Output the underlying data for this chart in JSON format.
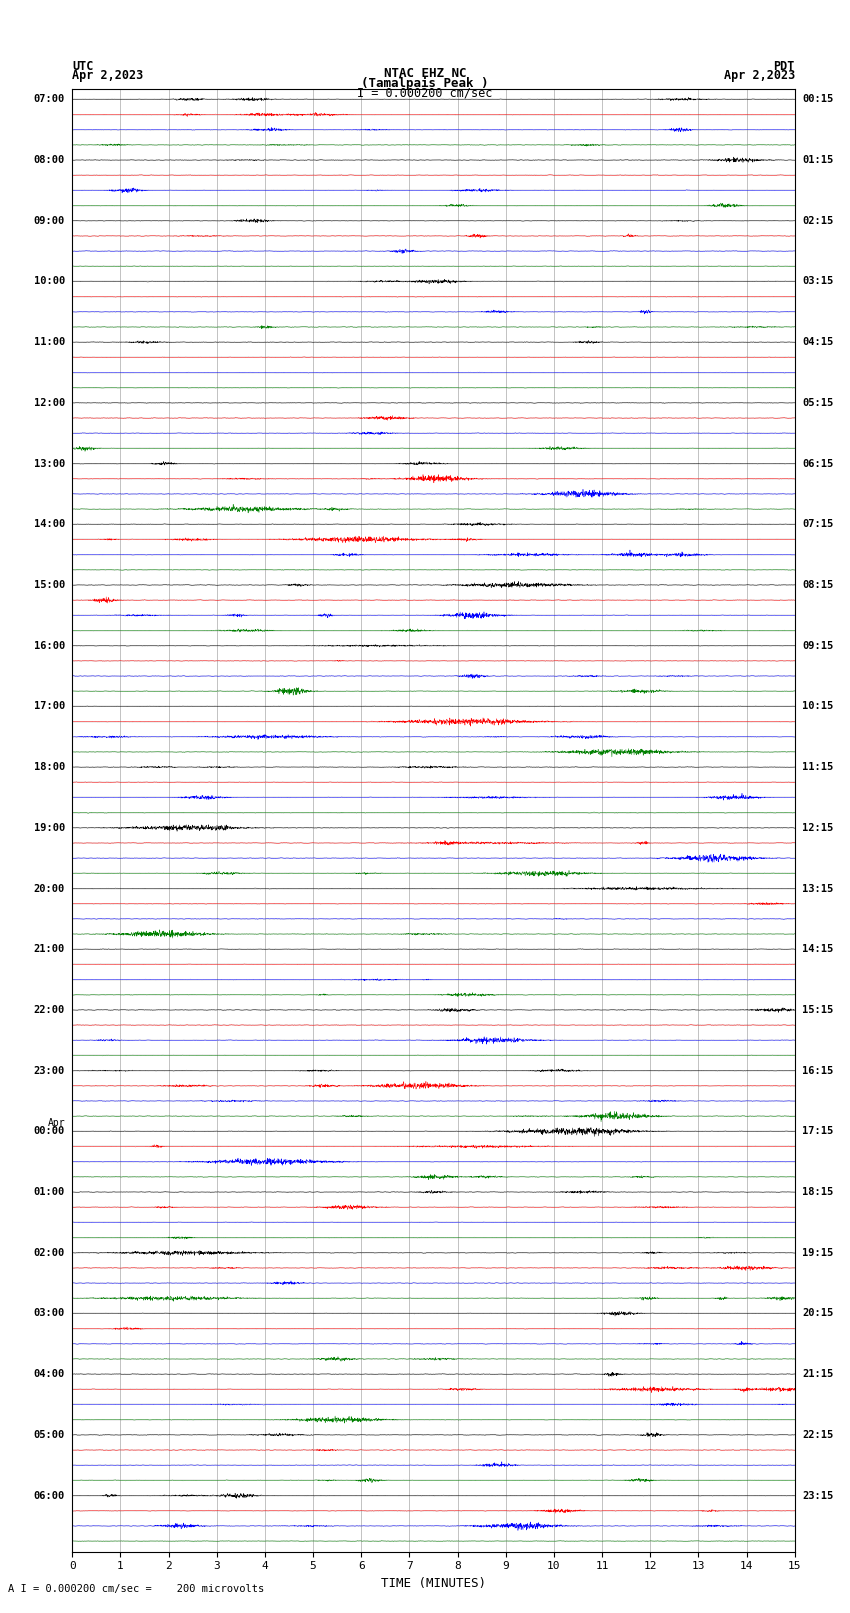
{
  "title_line1": "NTAC EHZ NC",
  "title_line2": "(Tamalpais Peak )",
  "title_line3": "I = 0.000200 cm/sec",
  "left_header_top": "UTC",
  "left_header_bot": "Apr 2,2023",
  "right_header_top": "PDT",
  "right_header_bot": "Apr 2,2023",
  "xlabel": "TIME (MINUTES)",
  "footer": "A I = 0.000200 cm/sec =    200 microvolts",
  "utc_labels": [
    "07:00",
    "08:00",
    "09:00",
    "10:00",
    "11:00",
    "12:00",
    "13:00",
    "14:00",
    "15:00",
    "16:00",
    "17:00",
    "18:00",
    "19:00",
    "20:00",
    "21:00",
    "22:00",
    "23:00",
    "Apr\n00:00",
    "01:00",
    "02:00",
    "03:00",
    "04:00",
    "05:00",
    "06:00"
  ],
  "pdt_labels": [
    "00:15",
    "01:15",
    "02:15",
    "03:15",
    "04:15",
    "05:15",
    "06:15",
    "07:15",
    "08:15",
    "09:15",
    "10:15",
    "11:15",
    "12:15",
    "13:15",
    "14:15",
    "15:15",
    "16:15",
    "17:15",
    "18:15",
    "19:15",
    "20:15",
    "21:15",
    "22:15",
    "23:15"
  ],
  "num_hours": 24,
  "traces_per_hour": 4,
  "colors": [
    "black",
    "red",
    "blue",
    "green"
  ],
  "xlim": [
    0,
    15
  ],
  "bg_color": "#ffffff",
  "grid_color": "#aaaaaa",
  "amplitude_scale": 0.25,
  "noise_base": 0.04,
  "noise_high": 0.02
}
